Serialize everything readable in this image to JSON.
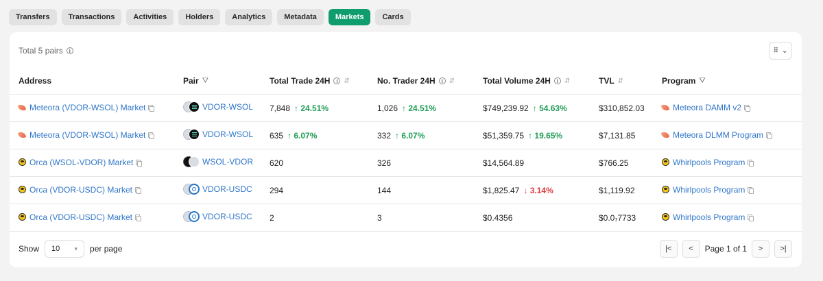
{
  "tabs": [
    {
      "label": "Transfers",
      "active": false
    },
    {
      "label": "Transactions",
      "active": false
    },
    {
      "label": "Activities",
      "active": false
    },
    {
      "label": "Holders",
      "active": false
    },
    {
      "label": "Analytics",
      "active": false
    },
    {
      "label": "Metadata",
      "active": false
    },
    {
      "label": "Markets",
      "active": true
    },
    {
      "label": "Cards",
      "active": false
    }
  ],
  "summary": {
    "total_label": "Total 5 pairs"
  },
  "column_button": {
    "icon": "grid-icon"
  },
  "table": {
    "headers": {
      "address": "Address",
      "pair": "Pair",
      "total_trade": "Total Trade 24H",
      "no_trader": "No. Trader 24H",
      "total_volume": "Total Volume 24H",
      "tvl": "TVL",
      "program": "Program"
    },
    "rows": [
      {
        "address": "Meteora (VDOR-WSOL) Market",
        "address_icon": "meteora-icon",
        "pair": "VDOR-WSOL",
        "pair_tokens": "vdor-sol",
        "total_trade": "7,848",
        "total_trade_change": "↑ 24.51%",
        "total_trade_dir": "up",
        "no_trader": "1,026",
        "no_trader_change": "↑ 24.51%",
        "no_trader_dir": "up",
        "total_volume": "$749,239.92",
        "total_volume_change": "↑ 54.63%",
        "total_volume_dir": "up",
        "tvl": "$310,852.03",
        "program": "Meteora DAMM v2",
        "program_icon": "meteora-icon"
      },
      {
        "address": "Meteora (VDOR-WSOL) Market",
        "address_icon": "meteora-icon",
        "pair": "VDOR-WSOL",
        "pair_tokens": "vdor-sol",
        "total_trade": "635",
        "total_trade_change": "↑ 6.07%",
        "total_trade_dir": "up",
        "no_trader": "332",
        "no_trader_change": "↑ 6.07%",
        "no_trader_dir": "up",
        "total_volume": "$51,359.75",
        "total_volume_change": "↑ 19.65%",
        "total_volume_dir": "up",
        "tvl": "$7,131.85",
        "program": "Meteora DLMM Program",
        "program_icon": "meteora-icon"
      },
      {
        "address": "Orca (WSOL-VDOR) Market",
        "address_icon": "orca-icon",
        "pair": "WSOL-VDOR",
        "pair_tokens": "sol-vdor",
        "total_trade": "620",
        "total_trade_change": "",
        "total_trade_dir": "",
        "no_trader": "326",
        "no_trader_change": "",
        "no_trader_dir": "",
        "total_volume": "$14,564.89",
        "total_volume_change": "",
        "total_volume_dir": "",
        "tvl": "$766.25",
        "program": "Whirlpools Program",
        "program_icon": "orca-icon"
      },
      {
        "address": "Orca (VDOR-USDC) Market",
        "address_icon": "orca-icon",
        "pair": "VDOR-USDC",
        "pair_tokens": "vdor-usdc",
        "total_trade": "294",
        "total_trade_change": "",
        "total_trade_dir": "",
        "no_trader": "144",
        "no_trader_change": "",
        "no_trader_dir": "",
        "total_volume": "$1,825.47",
        "total_volume_change": "↓ 3.14%",
        "total_volume_dir": "down",
        "tvl": "$1,119.92",
        "program": "Whirlpools Program",
        "program_icon": "orca-icon"
      },
      {
        "address": "Orca (VDOR-USDC) Market",
        "address_icon": "orca-icon",
        "pair": "VDOR-USDC",
        "pair_tokens": "vdor-usdc",
        "total_trade": "2",
        "total_trade_change": "",
        "total_trade_dir": "",
        "no_trader": "3",
        "no_trader_change": "",
        "no_trader_dir": "",
        "total_volume": "$0.4356",
        "total_volume_change": "",
        "total_volume_dir": "",
        "tvl": "$0.0₇7733",
        "program": "Whirlpools Program",
        "program_icon": "orca-icon"
      }
    ]
  },
  "footer": {
    "show_label": "Show",
    "page_size": "10",
    "per_page_label": "per page",
    "page_info": "Page 1 of 1"
  }
}
